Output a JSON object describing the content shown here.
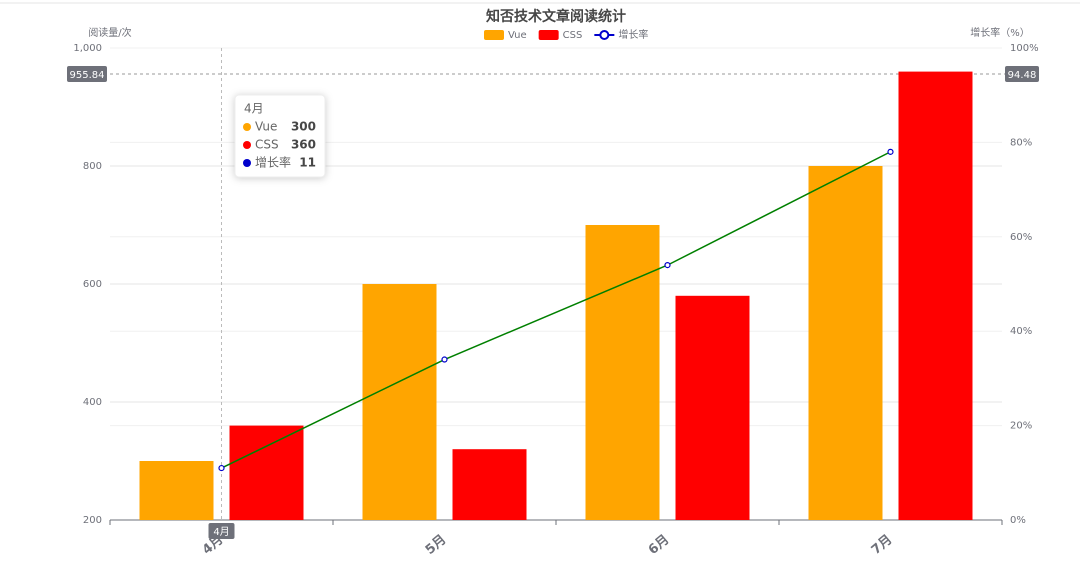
{
  "chart_data": {
    "type": "bar",
    "title": "知否技术文章阅读统计",
    "y_label": "阅读量/次",
    "y2_label": "增长率（%）",
    "categories": [
      "4月",
      "5月",
      "6月",
      "7月"
    ],
    "series": [
      {
        "name": "Vue",
        "type": "bar",
        "color": "#ffa500",
        "values": [
          300,
          600,
          700,
          800
        ]
      },
      {
        "name": "CSS",
        "type": "bar",
        "color": "#ff0000",
        "values": [
          360,
          320,
          580,
          960
        ]
      },
      {
        "name": "增长率",
        "type": "line",
        "axis": "y2",
        "color": "#0000cc",
        "line_color": "#008000",
        "values": [
          11,
          34,
          54,
          78
        ]
      }
    ],
    "ylim": [
      200,
      1000
    ],
    "yticks": [
      200,
      400,
      600,
      800,
      {
        "value": 1000,
        "label": "1,000"
      }
    ],
    "y2lim": [
      0,
      100
    ],
    "y2ticks": [
      {
        "value": 0,
        "label": "0%"
      },
      {
        "value": 20,
        "label": "20%"
      },
      {
        "value": 40,
        "label": "40%"
      },
      {
        "value": 60,
        "label": "60%"
      },
      {
        "value": 80,
        "label": "80%"
      },
      {
        "value": 100,
        "label": "100%"
      }
    ],
    "grid": true,
    "axis_pointer": {
      "y": 955.84,
      "y2": 94.48,
      "x": "4月"
    }
  }
}
